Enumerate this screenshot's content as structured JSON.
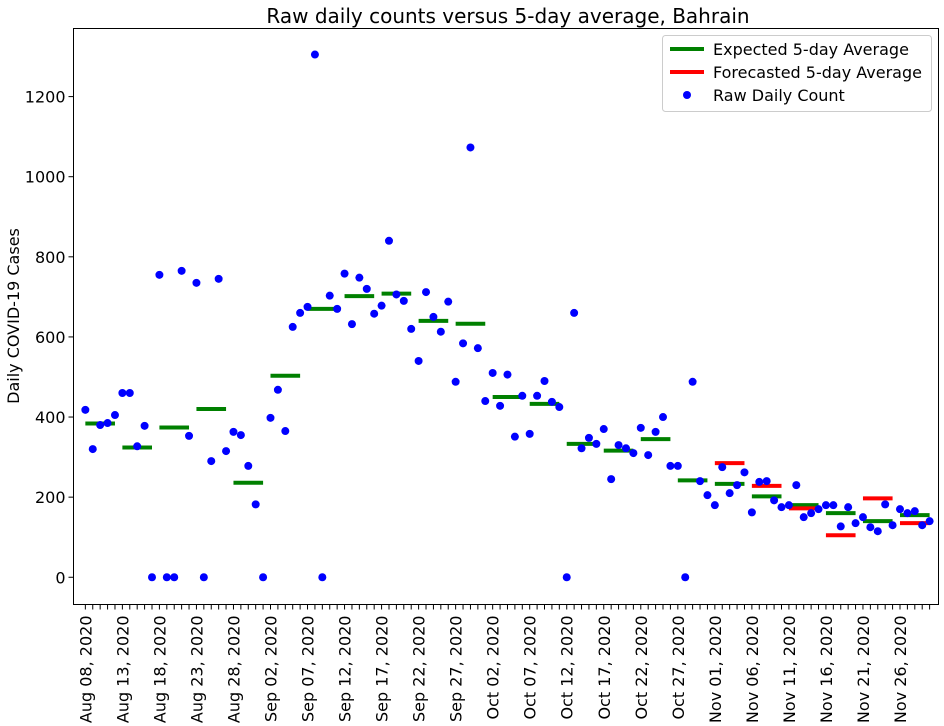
{
  "chart_data": {
    "type": "scatter",
    "title": "Raw daily counts versus 5-day average, Bahrain",
    "xlabel": "",
    "ylabel": "Daily COVID-19 Cases",
    "ylim": [
      -68,
      1370
    ],
    "yticks": [
      0,
      200,
      400,
      600,
      800,
      1000,
      1200
    ],
    "ytick_labels": [
      "0",
      "200",
      "400",
      "600",
      "800",
      "1000",
      "1200"
    ],
    "xlim": [
      -1.6,
      115.2
    ],
    "xticks_major": [
      0,
      5,
      10,
      15,
      20,
      25,
      30,
      35,
      40,
      45,
      50,
      55,
      60,
      65,
      70,
      75,
      80,
      85,
      90,
      95,
      100,
      105,
      110
    ],
    "xtick_labels": [
      "Aug 08, 2020",
      "Aug 13, 2020",
      "Aug 18, 2020",
      "Aug 23, 2020",
      "Aug 28, 2020",
      "Sep 02, 2020",
      "Sep 07, 2020",
      "Sep 12, 2020",
      "Sep 17, 2020",
      "Sep 22, 2020",
      "Sep 27, 2020",
      "Oct 02, 2020",
      "Oct 07, 2020",
      "Oct 12, 2020",
      "Oct 17, 2020",
      "Oct 22, 2020",
      "Oct 27, 2020",
      "Nov 01, 2020",
      "Nov 06, 2020",
      "Nov 11, 2020",
      "Nov 16, 2020",
      "Nov 21, 2020",
      "Nov 26, 2020"
    ],
    "xticks_minor_max": 114,
    "legend": {
      "position": "upper right",
      "entries": [
        {
          "label": "Expected 5-day Average",
          "color": "#008000",
          "marker": "line"
        },
        {
          "label": "Forecasted 5-day Average",
          "color": "#ff0000",
          "marker": "line"
        },
        {
          "label": "Raw Daily Count",
          "color": "#0000ff",
          "marker": "dot"
        }
      ]
    },
    "series": [
      {
        "name": "Raw Daily Count",
        "type": "scatter",
        "color": "#0000ff",
        "points": [
          [
            0,
            418
          ],
          [
            1,
            320
          ],
          [
            2,
            380
          ],
          [
            3,
            385
          ],
          [
            4,
            405
          ],
          [
            5,
            460
          ],
          [
            6,
            460
          ],
          [
            7,
            327
          ],
          [
            8,
            378
          ],
          [
            9,
            0
          ],
          [
            10,
            755
          ],
          [
            11,
            0
          ],
          [
            12,
            0
          ],
          [
            13,
            765
          ],
          [
            14,
            353
          ],
          [
            15,
            735
          ],
          [
            16,
            0
          ],
          [
            17,
            290
          ],
          [
            18,
            745
          ],
          [
            19,
            315
          ],
          [
            20,
            363
          ],
          [
            21,
            355
          ],
          [
            22,
            278
          ],
          [
            23,
            182
          ],
          [
            24,
            0
          ],
          [
            25,
            398
          ],
          [
            26,
            468
          ],
          [
            27,
            365
          ],
          [
            28,
            625
          ],
          [
            29,
            660
          ],
          [
            30,
            675
          ],
          [
            31,
            1305
          ],
          [
            32,
            0
          ],
          [
            33,
            703
          ],
          [
            34,
            670
          ],
          [
            35,
            758
          ],
          [
            36,
            632
          ],
          [
            37,
            748
          ],
          [
            38,
            720
          ],
          [
            39,
            658
          ],
          [
            40,
            678
          ],
          [
            41,
            840
          ],
          [
            42,
            706
          ],
          [
            43,
            690
          ],
          [
            44,
            620
          ],
          [
            45,
            540
          ],
          [
            46,
            712
          ],
          [
            47,
            650
          ],
          [
            48,
            613
          ],
          [
            49,
            688
          ],
          [
            50,
            488
          ],
          [
            51,
            584
          ],
          [
            52,
            1073
          ],
          [
            53,
            572
          ],
          [
            54,
            440
          ],
          [
            55,
            510
          ],
          [
            56,
            428
          ],
          [
            57,
            506
          ],
          [
            58,
            351
          ],
          [
            59,
            453
          ],
          [
            60,
            358
          ],
          [
            61,
            453
          ],
          [
            62,
            490
          ],
          [
            63,
            438
          ],
          [
            64,
            425
          ],
          [
            65,
            0
          ],
          [
            66,
            660
          ],
          [
            67,
            322
          ],
          [
            68,
            348
          ],
          [
            69,
            333
          ],
          [
            70,
            370
          ],
          [
            71,
            245
          ],
          [
            72,
            330
          ],
          [
            73,
            322
          ],
          [
            74,
            310
          ],
          [
            75,
            373
          ],
          [
            76,
            305
          ],
          [
            77,
            363
          ],
          [
            78,
            400
          ],
          [
            79,
            278
          ],
          [
            80,
            278
          ],
          [
            81,
            0
          ],
          [
            82,
            488
          ],
          [
            83,
            240
          ],
          [
            84,
            205
          ],
          [
            85,
            180
          ],
          [
            86,
            275
          ],
          [
            87,
            210
          ],
          [
            88,
            230
          ],
          [
            89,
            262
          ],
          [
            90,
            162
          ],
          [
            91,
            238
          ],
          [
            92,
            240
          ],
          [
            93,
            192
          ],
          [
            94,
            175
          ],
          [
            95,
            180
          ],
          [
            96,
            230
          ],
          [
            97,
            150
          ],
          [
            98,
            160
          ],
          [
            99,
            170
          ],
          [
            100,
            180
          ],
          [
            101,
            180
          ],
          [
            102,
            127
          ],
          [
            103,
            175
          ],
          [
            104,
            135
          ],
          [
            105,
            150
          ],
          [
            106,
            125
          ],
          [
            107,
            115
          ],
          [
            108,
            182
          ],
          [
            109,
            130
          ],
          [
            110,
            170
          ],
          [
            111,
            160
          ],
          [
            112,
            165
          ],
          [
            113,
            130
          ],
          [
            114,
            140
          ]
        ]
      },
      {
        "name": "Expected 5-day Average",
        "type": "segments",
        "color": "#008000",
        "segments": [
          [
            0,
            4,
            384
          ],
          [
            5,
            9,
            324
          ],
          [
            10,
            14,
            374
          ],
          [
            15,
            19,
            420
          ],
          [
            20,
            24,
            236
          ],
          [
            25,
            29,
            503
          ],
          [
            30,
            34,
            670
          ],
          [
            35,
            39,
            702
          ],
          [
            40,
            44,
            708
          ],
          [
            45,
            49,
            640
          ],
          [
            50,
            54,
            633
          ],
          [
            55,
            59,
            450
          ],
          [
            60,
            64,
            433
          ],
          [
            65,
            69,
            333
          ],
          [
            70,
            74,
            316
          ],
          [
            75,
            79,
            345
          ],
          [
            80,
            84,
            242
          ],
          [
            85,
            89,
            233
          ],
          [
            90,
            94,
            202
          ],
          [
            95,
            99,
            180
          ],
          [
            100,
            104,
            160
          ],
          [
            105,
            109,
            140
          ],
          [
            110,
            114,
            155
          ]
        ]
      },
      {
        "name": "Forecasted 5-day Average",
        "type": "segments",
        "color": "#ff0000",
        "segments": [
          [
            85,
            89,
            285
          ],
          [
            90,
            94,
            228
          ],
          [
            95,
            99,
            172
          ],
          [
            100,
            104,
            105
          ],
          [
            105,
            109,
            197
          ],
          [
            110,
            114,
            135
          ]
        ]
      }
    ]
  }
}
